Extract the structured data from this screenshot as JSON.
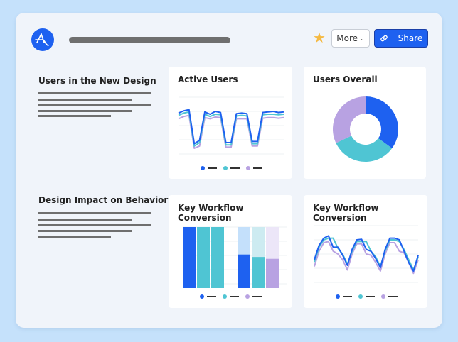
{
  "header": {
    "more_label": "More",
    "share_label": "Share",
    "logo": "amplitude-logo",
    "star_icon": "star-icon",
    "link_icon": "link-icon"
  },
  "sections": [
    {
      "title": "Users in the New Design"
    },
    {
      "title": "Design Impact on Behavior"
    }
  ],
  "colors": {
    "blue": "#1e61f0",
    "teal": "#4fc5d3",
    "purple": "#b8a2e2",
    "blue_light": "#c4e0fb",
    "teal_light": "#cdebf1",
    "purple_light": "#ece6f8",
    "accent_star": "#f5b942"
  },
  "cards": [
    {
      "title": "Active Users"
    },
    {
      "title": "Users Overall"
    },
    {
      "title": "Key Workflow Conversion"
    },
    {
      "title": "Key Workflow Conversion"
    }
  ],
  "chart_data": [
    {
      "type": "line",
      "title": "Active Users",
      "ylim": [
        0,
        100
      ],
      "grid": true,
      "legend": "bottom",
      "series": [
        {
          "color": "#1e61f0",
          "values": [
            72,
            76,
            78,
            18,
            24,
            74,
            70,
            75,
            73,
            20,
            20,
            71,
            72,
            71,
            22,
            22,
            73,
            74,
            75,
            73,
            74
          ]
        },
        {
          "color": "#4fc5d3",
          "values": [
            68,
            72,
            74,
            14,
            20,
            70,
            66,
            70,
            69,
            16,
            16,
            67,
            68,
            67,
            18,
            18,
            69,
            70,
            70,
            69,
            70
          ]
        },
        {
          "color": "#b8a2e2",
          "values": [
            62,
            66,
            68,
            10,
            14,
            64,
            62,
            65,
            64,
            12,
            12,
            62,
            62,
            62,
            14,
            14,
            63,
            64,
            64,
            63,
            64
          ]
        }
      ]
    },
    {
      "type": "pie",
      "title": "Users Overall",
      "donut": true,
      "values": [
        35,
        33,
        32
      ],
      "colors": [
        "#1e61f0",
        "#4fc5d3",
        "#b8a2e2"
      ]
    },
    {
      "type": "bar",
      "title": "Key Workflow Conversion",
      "ylim": [
        0,
        100
      ],
      "grid": true,
      "legend": "bottom",
      "groups": [
        {
          "bars": [
            {
              "value": 100,
              "color": "#1e61f0"
            },
            {
              "value": 100,
              "color": "#4fc5d3"
            },
            {
              "value": 100,
              "color": "#4fc5d3"
            }
          ]
        },
        {
          "bars": [
            {
              "value": 55,
              "color": "#1e61f0",
              "bg": "#c4e0fb"
            },
            {
              "value": 51,
              "color": "#4fc5d3",
              "bg": "#cdebf1"
            },
            {
              "value": 48,
              "color": "#b8a2e2",
              "bg": "#ece6f8"
            }
          ]
        }
      ]
    },
    {
      "type": "line",
      "title": "Key Workflow Conversion",
      "ylim": [
        0,
        100
      ],
      "grid": true,
      "legend": "bottom",
      "series": [
        {
          "color": "#1e61f0",
          "values": [
            40,
            65,
            78,
            82,
            62,
            62,
            48,
            30,
            58,
            75,
            76,
            58,
            55,
            42,
            26,
            58,
            78,
            78,
            75,
            55,
            35,
            20,
            48
          ]
        },
        {
          "color": "#4fc5d3",
          "values": [
            36,
            62,
            75,
            78,
            78,
            60,
            50,
            32,
            55,
            72,
            72,
            72,
            55,
            45,
            28,
            55,
            75,
            75,
            72,
            58,
            40,
            22,
            45
          ]
        },
        {
          "color": "#b8a2e2",
          "values": [
            28,
            55,
            70,
            72,
            55,
            50,
            40,
            22,
            50,
            68,
            68,
            50,
            48,
            35,
            20,
            50,
            70,
            70,
            55,
            52,
            35,
            16,
            40
          ]
        }
      ]
    }
  ]
}
